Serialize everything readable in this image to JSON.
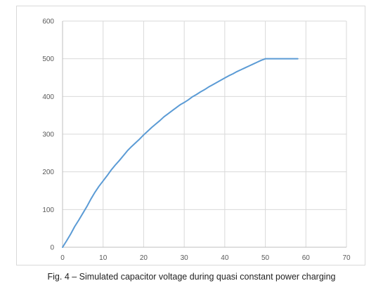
{
  "caption": "Fig. 4 – Simulated capacitor voltage during quasi constant power charging",
  "chart_data": {
    "type": "line",
    "title": "",
    "xlabel": "",
    "ylabel": "",
    "xlim": [
      0,
      70
    ],
    "ylim": [
      0,
      600
    ],
    "x_ticks": [
      0,
      10,
      20,
      30,
      40,
      50,
      60,
      70
    ],
    "y_ticks": [
      0,
      100,
      200,
      300,
      400,
      500,
      600
    ],
    "grid": true,
    "legend": "none",
    "series": [
      {
        "color": "#5b9bd5",
        "x": [
          0,
          1,
          2,
          3,
          4,
          5,
          6,
          7,
          8,
          9,
          10,
          11,
          12,
          13,
          14,
          15,
          16,
          17,
          18,
          19,
          20,
          21,
          22,
          23,
          24,
          25,
          26,
          27,
          28,
          29,
          30,
          31,
          32,
          33,
          34,
          35,
          36,
          37,
          38,
          39,
          40,
          41,
          42,
          43,
          44,
          45,
          46,
          47,
          48,
          49,
          50,
          51,
          52,
          53,
          54,
          55,
          56,
          57,
          58
        ],
        "y": [
          0,
          17,
          35,
          55,
          72,
          90,
          108,
          128,
          146,
          162,
          176,
          190,
          205,
          218,
          230,
          243,
          256,
          267,
          277,
          287,
          298,
          308,
          318,
          327,
          336,
          346,
          354,
          362,
          370,
          378,
          384,
          391,
          399,
          405,
          412,
          418,
          425,
          431,
          437,
          443,
          449,
          455,
          460,
          466,
          471,
          476,
          481,
          486,
          491,
          496,
          500,
          500,
          500,
          500,
          500,
          500,
          500,
          500,
          500
        ]
      }
    ]
  }
}
